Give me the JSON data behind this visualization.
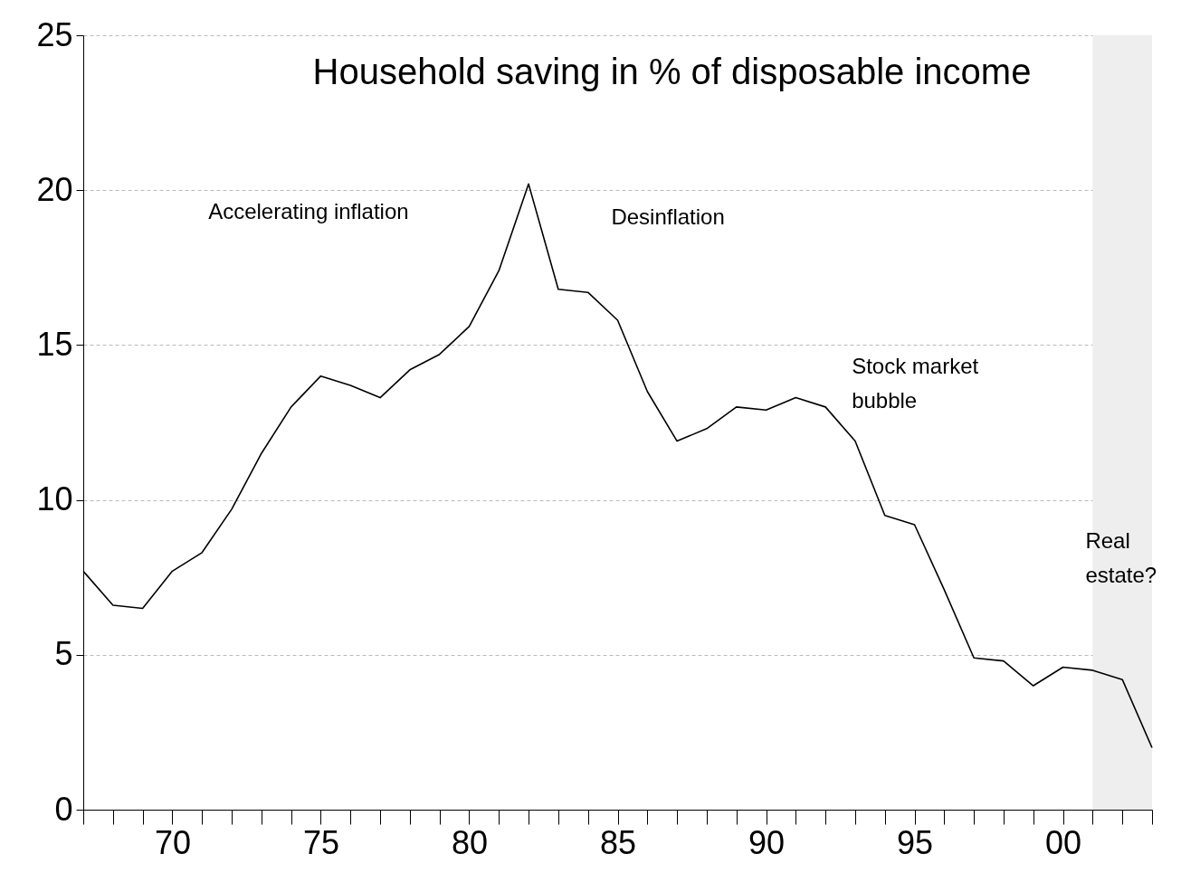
{
  "chart_data": {
    "type": "line",
    "title": "Household saving in % of disposable income",
    "x": [
      1967,
      1968,
      1969,
      1970,
      1971,
      1972,
      1973,
      1974,
      1975,
      1976,
      1977,
      1978,
      1979,
      1980,
      1981,
      1982,
      1983,
      1984,
      1985,
      1986,
      1987,
      1988,
      1989,
      1990,
      1991,
      1992,
      1993,
      1994,
      1995,
      1996,
      1997,
      1998,
      1999,
      2000,
      2001,
      2002,
      2003
    ],
    "series": [
      {
        "color": "#000000",
        "values": [
          7.7,
          6.6,
          6.5,
          7.7,
          8.3,
          9.7,
          11.5,
          13.0,
          14.0,
          13.7,
          13.3,
          14.2,
          14.7,
          15.6,
          17.4,
          20.2,
          16.8,
          16.7,
          15.8,
          13.5,
          11.9,
          12.3,
          13.0,
          12.9,
          13.3,
          13.0,
          11.9,
          9.5,
          9.2,
          7.1,
          4.9,
          4.8,
          4.0,
          4.6,
          4.5,
          4.2,
          2.0
        ]
      }
    ],
    "xlim": [
      1967,
      2003
    ],
    "xticks": [
      {
        "value": 1967,
        "label": null
      },
      {
        "value": 1968,
        "label": null
      },
      {
        "value": 1969,
        "label": null
      },
      {
        "value": 1970,
        "label": "70"
      },
      {
        "value": 1971,
        "label": null
      },
      {
        "value": 1972,
        "label": null
      },
      {
        "value": 1973,
        "label": null
      },
      {
        "value": 1974,
        "label": null
      },
      {
        "value": 1975,
        "label": "75"
      },
      {
        "value": 1976,
        "label": null
      },
      {
        "value": 1977,
        "label": null
      },
      {
        "value": 1978,
        "label": null
      },
      {
        "value": 1979,
        "label": null
      },
      {
        "value": 1980,
        "label": "80"
      },
      {
        "value": 1981,
        "label": null
      },
      {
        "value": 1982,
        "label": null
      },
      {
        "value": 1983,
        "label": null
      },
      {
        "value": 1984,
        "label": null
      },
      {
        "value": 1985,
        "label": "85"
      },
      {
        "value": 1986,
        "label": null
      },
      {
        "value": 1987,
        "label": null
      },
      {
        "value": 1988,
        "label": null
      },
      {
        "value": 1989,
        "label": null
      },
      {
        "value": 1990,
        "label": "90"
      },
      {
        "value": 1991,
        "label": null
      },
      {
        "value": 1992,
        "label": null
      },
      {
        "value": 1993,
        "label": null
      },
      {
        "value": 1994,
        "label": null
      },
      {
        "value": 1995,
        "label": "95"
      },
      {
        "value": 1996,
        "label": null
      },
      {
        "value": 1997,
        "label": null
      },
      {
        "value": 1998,
        "label": null
      },
      {
        "value": 1999,
        "label": null
      },
      {
        "value": 2000,
        "label": "00"
      },
      {
        "value": 2001,
        "label": null
      },
      {
        "value": 2002,
        "label": null
      },
      {
        "value": 2003,
        "label": null
      }
    ],
    "ylim": [
      0,
      25
    ],
    "yticks": [
      0,
      5,
      10,
      15,
      20,
      25
    ],
    "grid": "y",
    "bands": [
      {
        "axis": "x",
        "from": 2001,
        "to": 2003,
        "label": "Real estate?",
        "color": "#eeeeee"
      }
    ],
    "annotations": [
      "Accelerating inflation",
      "Desinflation",
      "Stock market bubble"
    ]
  }
}
